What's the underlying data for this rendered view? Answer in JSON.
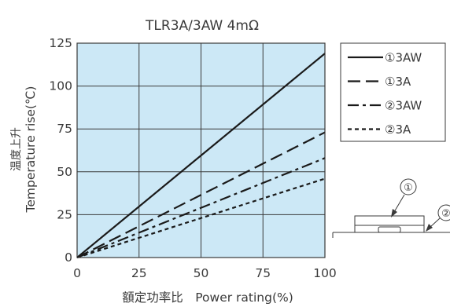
{
  "chart_data": {
    "type": "line",
    "title": "TLR3A/3AW 4mΩ",
    "xlabel": "額定功率比　Power rating(%)",
    "ylabel_cjk": "温度上升",
    "ylabel": "Temperature rise(℃)",
    "xlim": [
      0,
      100
    ],
    "ylim": [
      0,
      125
    ],
    "x_ticks": [
      "0",
      "25",
      "50",
      "75",
      "100"
    ],
    "y_ticks": [
      "0",
      "25",
      "50",
      "75",
      "100",
      "125"
    ],
    "grid": true,
    "legend_position": "right",
    "plot_background": "#cce8f6",
    "series": [
      {
        "name": "①3AW",
        "style": "solid",
        "x": [
          0,
          100
        ],
        "y": [
          0,
          119
        ]
      },
      {
        "name": "①3A",
        "style": "dashed",
        "x": [
          0,
          100
        ],
        "y": [
          0,
          73
        ]
      },
      {
        "name": "②3AW",
        "style": "dashdot",
        "x": [
          0,
          100
        ],
        "y": [
          0,
          58
        ]
      },
      {
        "name": "②3A",
        "style": "dotted",
        "x": [
          0,
          100
        ],
        "y": [
          0,
          46
        ]
      }
    ]
  },
  "diagram": {
    "marker_1": "①",
    "marker_2": "②"
  }
}
